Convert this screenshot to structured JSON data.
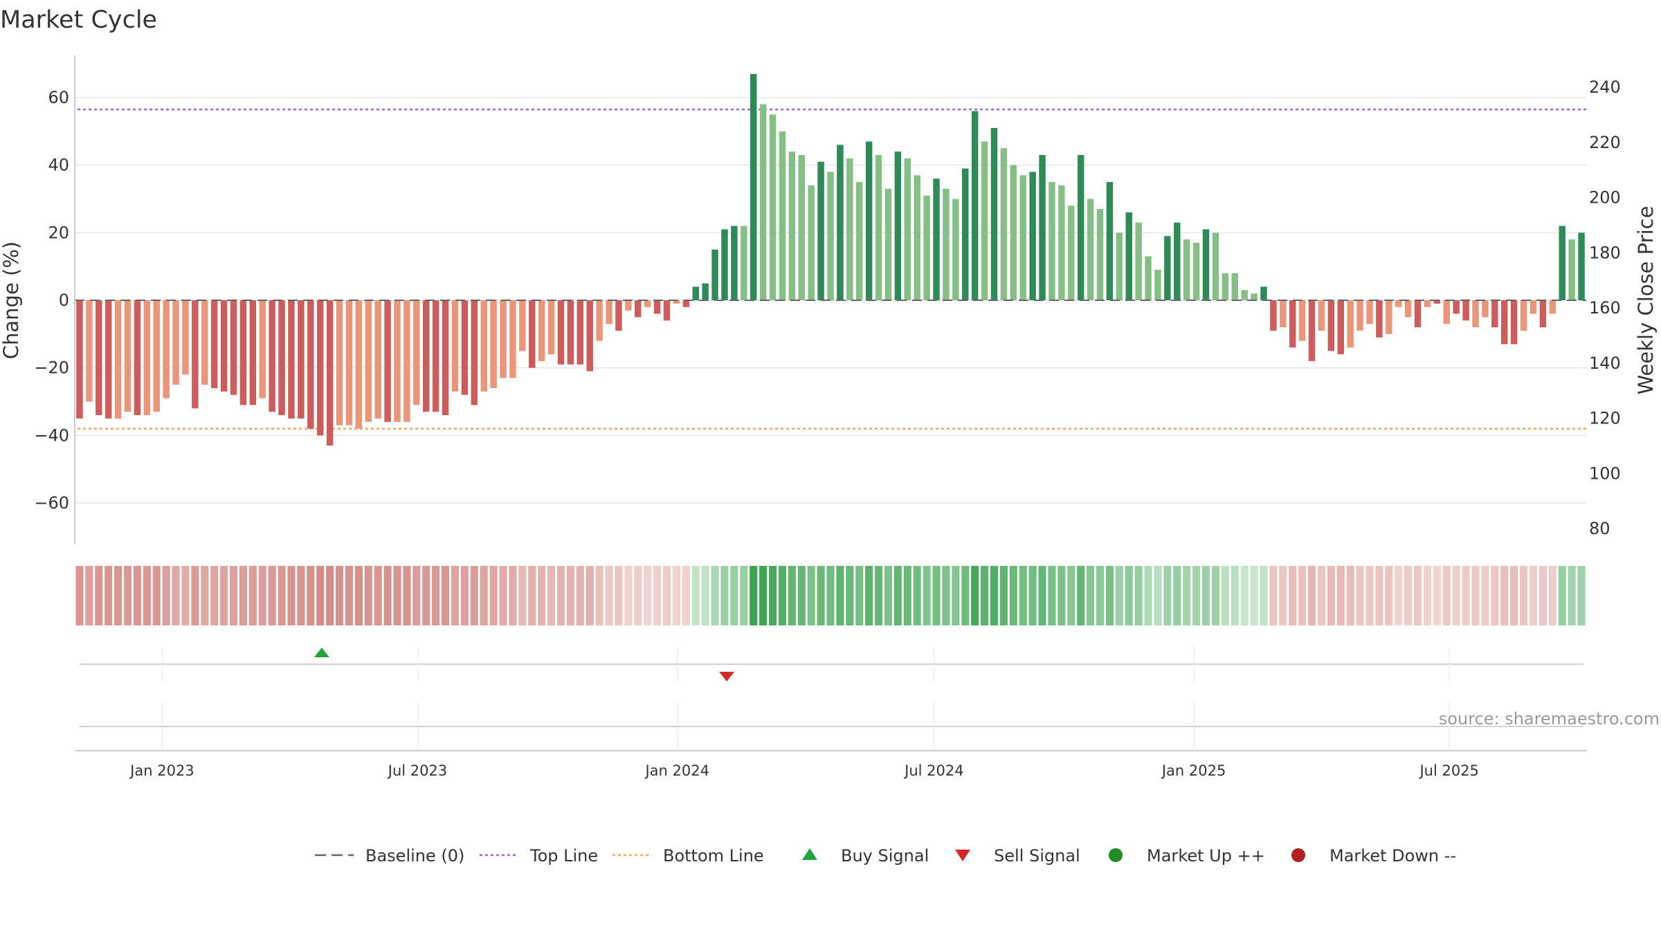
{
  "chart_data": {
    "type": "bar",
    "title": "Market Cycle",
    "ylabel_left": "Change (%)",
    "ylabel_right": "Weekly Close Price",
    "ylim_left": [
      -72,
      72
    ],
    "ylim_right": [
      74,
      246
    ],
    "yticks_left": [
      60,
      40,
      20,
      0,
      -20,
      -40,
      -60
    ],
    "yticks_left_labels": [
      "60",
      "40",
      "20",
      "0",
      "−20",
      "−40",
      "−60"
    ],
    "yticks_right": [
      240,
      220,
      200,
      180,
      160,
      140,
      120,
      100,
      80
    ],
    "top_line": 56.5,
    "bottom_line": -38,
    "x_start": "2022-10-31",
    "x_end": "2025-10-06",
    "x_tick_dates": [
      "2023-01-01",
      "2023-07-01",
      "2024-01-01",
      "2024-07-01",
      "2025-01-01",
      "2025-07-01"
    ],
    "x_tick_labels": [
      "Jan 2023",
      "Jul 2023",
      "Jan 2024",
      "Jul 2024",
      "Jan 2025",
      "Jul 2025"
    ],
    "weeks": 157,
    "values": [
      -35,
      -30,
      -34,
      -35,
      -35,
      -33,
      -34,
      -34,
      -33,
      -29,
      -25,
      -22,
      -32,
      -25,
      -26,
      -27,
      -28,
      -31,
      -31,
      -29,
      -33,
      -34,
      -35,
      -35,
      -38,
      -40,
      -43,
      -37,
      -37,
      -38,
      -36,
      -35,
      -36,
      -36,
      -36,
      -31,
      -33,
      -33,
      -34,
      -27,
      -28,
      -31,
      -27,
      -26,
      -23,
      -23,
      -15,
      -20,
      -18,
      -16,
      -19,
      -19,
      -19,
      -21,
      -12,
      -7,
      -9,
      -3,
      -5,
      -2,
      -4,
      -6,
      -1,
      -2,
      4,
      5,
      15,
      21,
      22,
      22,
      67,
      58,
      55,
      50,
      44,
      43,
      34,
      41,
      38,
      46,
      42,
      35,
      47,
      43,
      33,
      44,
      42,
      37,
      31,
      36,
      33,
      30,
      39,
      56,
      47,
      51,
      45,
      40,
      37,
      38,
      43,
      35,
      34,
      28,
      43,
      30,
      27,
      35,
      20,
      26,
      23,
      13,
      9,
      19,
      23,
      18,
      17,
      21,
      20,
      8,
      8,
      3,
      2,
      4,
      -9,
      -8,
      -14,
      -12,
      -18,
      -9,
      -15,
      -16,
      -14,
      -9,
      -7,
      -11,
      -10,
      -2,
      -5,
      -8,
      -2,
      -1,
      -7,
      -4,
      -6,
      -8,
      -5,
      -8,
      -13,
      -13,
      -9,
      -4,
      -8,
      -4,
      22,
      18,
      20
    ],
    "strong": [
      1,
      0,
      1,
      1,
      0,
      0,
      1,
      0,
      0,
      0,
      0,
      0,
      1,
      0,
      1,
      1,
      1,
      1,
      1,
      0,
      1,
      1,
      1,
      1,
      1,
      1,
      1,
      0,
      0,
      0,
      0,
      0,
      1,
      0,
      0,
      0,
      1,
      1,
      1,
      0,
      1,
      1,
      0,
      0,
      0,
      0,
      0,
      1,
      0,
      0,
      1,
      1,
      1,
      1,
      0,
      0,
      1,
      0,
      1,
      0,
      1,
      1,
      0,
      1,
      1,
      1,
      1,
      1,
      1,
      0,
      1,
      0,
      0,
      0,
      0,
      0,
      0,
      1,
      0,
      1,
      0,
      0,
      1,
      0,
      0,
      1,
      0,
      0,
      0,
      1,
      0,
      0,
      1,
      1,
      0,
      1,
      0,
      0,
      0,
      1,
      1,
      0,
      0,
      0,
      1,
      0,
      0,
      1,
      0,
      1,
      0,
      0,
      0,
      1,
      1,
      0,
      0,
      1,
      0,
      0,
      0,
      0,
      0,
      1,
      1,
      0,
      1,
      0,
      1,
      0,
      1,
      1,
      0,
      0,
      0,
      1,
      0,
      0,
      0,
      1,
      0,
      1,
      0,
      1,
      1,
      0,
      0,
      1,
      1,
      1,
      0,
      0,
      1,
      0,
      1,
      0,
      1
    ],
    "buy_signals": [
      "2023-04-24"
    ],
    "sell_signals": [
      "2024-02-05"
    ],
    "source_text": "source: sharemaestro.com",
    "legend": [
      {
        "label": "Baseline (0)",
        "marker": "dash-line",
        "color": "#666666"
      },
      {
        "label": "Top Line",
        "marker": "dotted-line",
        "color": "#9966cc"
      },
      {
        "label": "Bottom Line",
        "marker": "dotted-line",
        "color": "#f4a460"
      },
      {
        "label": "Buy Signal",
        "marker": "triangle-up",
        "color": "#22a33c"
      },
      {
        "label": "Sell Signal",
        "marker": "triangle-down",
        "color": "#d62728"
      },
      {
        "label": "Market Up ++",
        "marker": "circle",
        "color": "#228b22"
      },
      {
        "label": "Market Down --",
        "marker": "circle",
        "color": "#b22222"
      }
    ],
    "colors": {
      "strong_up": "#2e8b57",
      "weak_up": "#86bf86",
      "strong_down": "#cd5c5c",
      "weak_down": "#e9967a",
      "baseline": "#666666",
      "grid": "#e6e6e6"
    }
  }
}
